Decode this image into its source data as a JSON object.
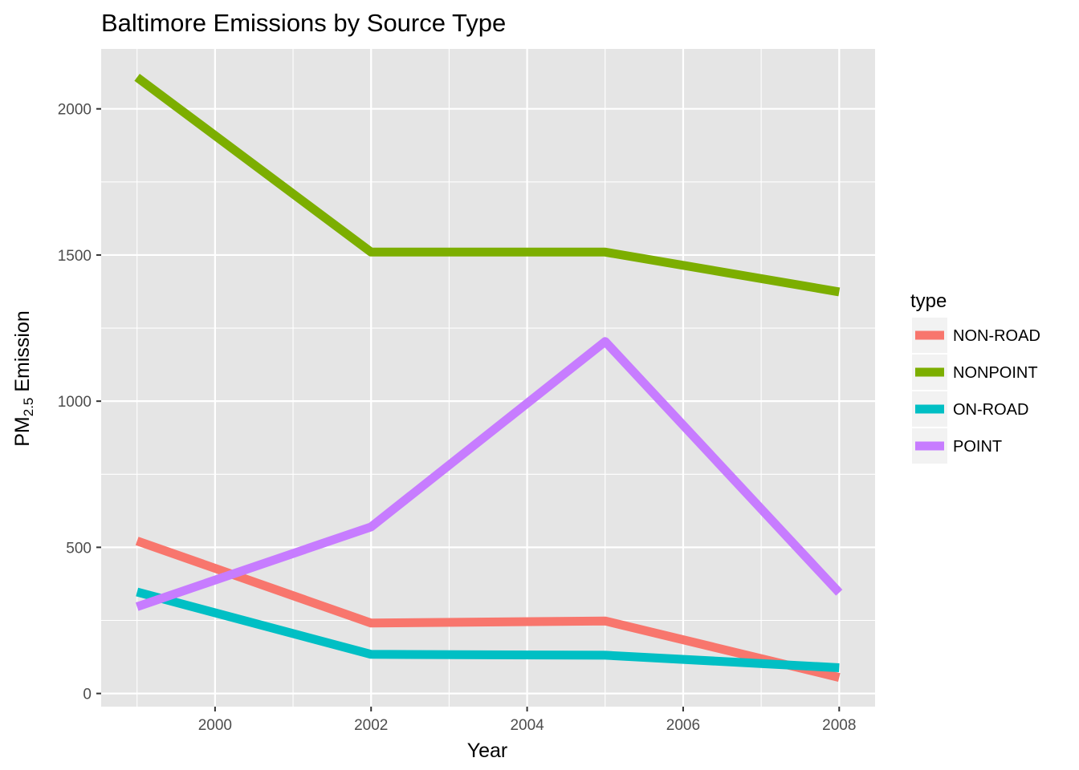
{
  "chart_data": {
    "type": "line",
    "title": "Baltimore Emissions by Source Type",
    "xlabel": "Year",
    "ylabel": {
      "main": "PM",
      "sub": "2.5",
      "rest": " Emission"
    },
    "xlim": [
      1998.54,
      2008.46
    ],
    "ylim": [
      -45,
      2205
    ],
    "x_ticks": [
      2000,
      2002,
      2004,
      2006,
      2008
    ],
    "y_ticks": [
      0,
      500,
      1000,
      1500,
      2000
    ],
    "x_minor": [
      1999,
      2001,
      2003,
      2005,
      2007
    ],
    "y_minor": [
      250,
      750,
      1250,
      1750
    ],
    "grid": true,
    "panel_background": "#e5e5e5",
    "grid_color": "#ffffff",
    "legend": {
      "title": "type",
      "position": "right"
    },
    "x": [
      1999,
      2002,
      2005,
      2008
    ],
    "series": [
      {
        "name": "NON-ROAD",
        "color": "#F8766D",
        "values": [
          522,
          241,
          248,
          55
        ]
      },
      {
        "name": "NONPOINT",
        "color": "#7CAE00",
        "values": [
          2108,
          1510,
          1510,
          1374
        ]
      },
      {
        "name": "ON-ROAD",
        "color": "#00BFC4",
        "values": [
          347,
          134,
          131,
          88
        ]
      },
      {
        "name": "POINT",
        "color": "#C77CFF",
        "values": [
          297,
          570,
          1204,
          345
        ]
      }
    ]
  }
}
